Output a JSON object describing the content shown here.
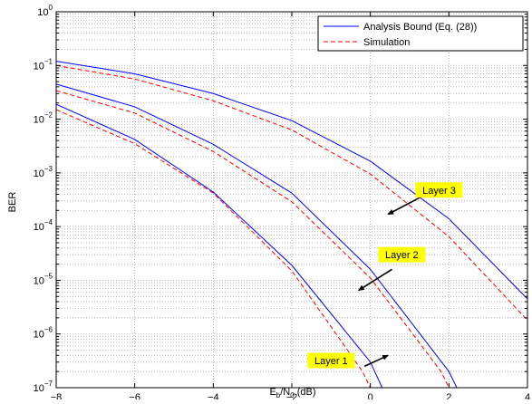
{
  "chart_data": {
    "type": "line",
    "xlabel": {
      "base": "E",
      "sub1": "b",
      "mid": "/N",
      "sub2": "0",
      "tail": " (dB)"
    },
    "ylabel": "BER",
    "xlim": [
      -8,
      4
    ],
    "ylim": [
      1e-07,
      1
    ],
    "y_scale": "log",
    "grid": "dotted, major and minor",
    "legend_position": "top-right",
    "x_ticks": [
      -8,
      -6,
      -4,
      -2,
      0,
      2,
      4
    ],
    "x_tick_labels": [
      "−8",
      "−6",
      "−4",
      "−2",
      "0",
      "2",
      "4"
    ],
    "y_ticks": [
      {
        "exp": -7,
        "base": "10",
        "sup": "−7"
      },
      {
        "exp": -6,
        "base": "10",
        "sup": "−6"
      },
      {
        "exp": -5,
        "base": "10",
        "sup": "−5"
      },
      {
        "exp": -4,
        "base": "10",
        "sup": "−4"
      },
      {
        "exp": -3,
        "base": "10",
        "sup": "−3"
      },
      {
        "exp": -2,
        "base": "10",
        "sup": "−2"
      },
      {
        "exp": -1,
        "base": "10",
        "sup": "−1"
      },
      {
        "exp": 0,
        "base": "10",
        "sup": "0"
      }
    ],
    "legend": [
      {
        "label": "Analysis Bound (Eq. (28))",
        "color": "#0000ff",
        "style": "solid"
      },
      {
        "label": "Simulation",
        "color": "#ff0000",
        "style": "dashed"
      }
    ],
    "series": [
      {
        "style": "analysis",
        "layer": "Layer 1",
        "x": [
          -8,
          -6,
          -4,
          -2,
          0,
          0.3
        ],
        "y": [
          0.019,
          0.0042,
          0.00044,
          1.9e-05,
          3e-07,
          1e-07
        ]
      },
      {
        "style": "simulation",
        "layer": "Layer 1",
        "x": [
          -8,
          -6,
          -4,
          -2,
          -0.2,
          0
        ],
        "y": [
          0.015,
          0.0035,
          0.00042,
          1.5e-05,
          2e-07,
          1e-07
        ]
      },
      {
        "style": "analysis",
        "layer": "Layer 2",
        "x": [
          -8,
          -6,
          -4,
          -2,
          0,
          2,
          2.2
        ],
        "y": [
          0.045,
          0.017,
          0.0034,
          0.00042,
          1.6e-05,
          2e-07,
          1e-07
        ]
      },
      {
        "style": "simulation",
        "layer": "Layer 2",
        "x": [
          -8,
          -6,
          -4,
          -2,
          0,
          1.8,
          2
        ],
        "y": [
          0.034,
          0.013,
          0.0025,
          0.00029,
          1.1e-05,
          2e-07,
          1e-07
        ]
      },
      {
        "style": "analysis",
        "layer": "Layer 3",
        "x": [
          -8,
          -6,
          -4,
          -2,
          0,
          2,
          4
        ],
        "y": [
          0.12,
          0.07,
          0.03,
          0.0094,
          0.00165,
          0.00014,
          4.5e-06
        ]
      },
      {
        "style": "simulation",
        "layer": "Layer 3",
        "x": [
          -8,
          -6,
          -4,
          -2,
          0,
          2,
          4
        ],
        "y": [
          0.1,
          0.056,
          0.022,
          0.0063,
          0.00095,
          6.5e-05,
          1.8e-06
        ]
      }
    ],
    "annotations": [
      {
        "label": "Layer 1",
        "box_x": -1.6,
        "box_y": 3.2e-07,
        "arrow_from_x": -0.15,
        "arrow_from_y": 2.5e-07,
        "arrow_to_x": 0.45,
        "arrow_to_y": 4e-07
      },
      {
        "label": "Layer 2",
        "box_x": 0.2,
        "box_y": 3e-05,
        "arrow_from_x": 0.55,
        "arrow_from_y": 1.6e-05,
        "arrow_to_x": -0.3,
        "arrow_to_y": 6.5e-06
      },
      {
        "label": "Layer 3",
        "box_x": 1.15,
        "box_y": 0.00048,
        "arrow_from_x": 1.3,
        "arrow_from_y": 0.00036,
        "arrow_to_x": 0.45,
        "arrow_to_y": 0.00017
      }
    ],
    "colors": {
      "analysis": "#0000ff",
      "simulation": "#ff0000",
      "annotation_fill": "#ffff00",
      "grid": "#9a9a9a"
    }
  }
}
